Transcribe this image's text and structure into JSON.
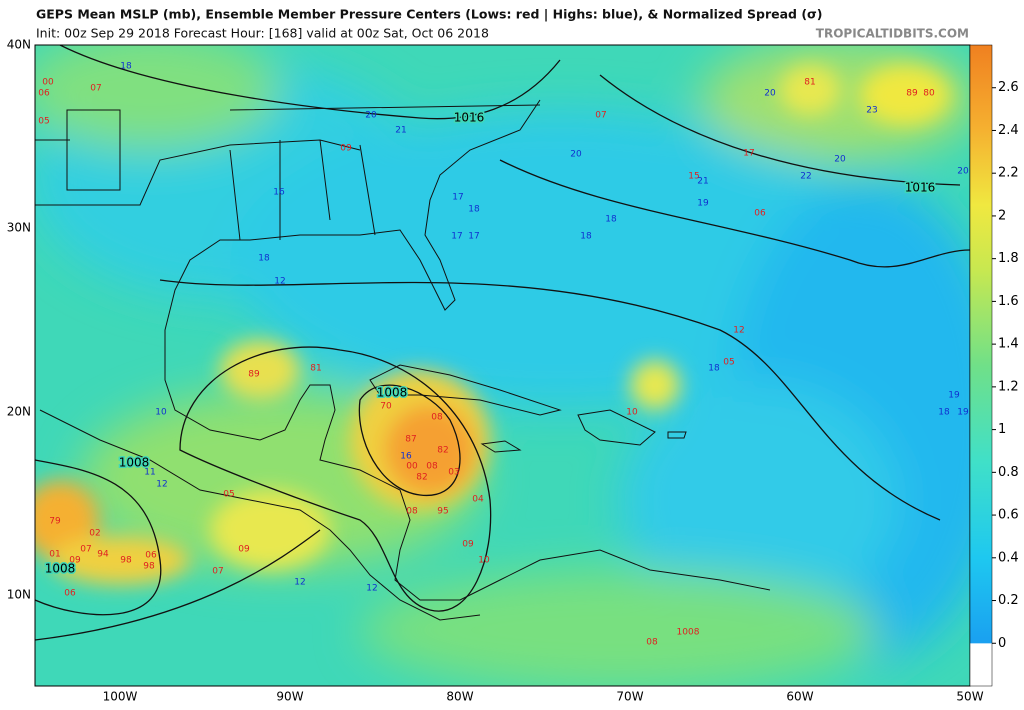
{
  "header": {
    "title": "GEPS Mean MSLP (mb), Ensemble Member Pressure Centers (Lows: red | Highs: blue), & Normalized Spread (σ)",
    "subtitle": "Init: 00z Sep 29 2018   Forecast Hour: [168]   valid at 00z Sat, Oct 06 2018",
    "credit": "TROPICALTIDBITS.COM"
  },
  "map": {
    "lat_labels": [
      "40N",
      "30N",
      "20N",
      "10N"
    ],
    "lon_labels": [
      "100W",
      "90W",
      "80W",
      "70W",
      "60W",
      "50W"
    ],
    "isobar_labels": [
      "1016",
      "1016",
      "1008",
      "1008",
      "1008"
    ],
    "lows": [
      "00",
      "07",
      "06",
      "05",
      "09",
      "07",
      "81",
      "89",
      "80",
      "17",
      "15",
      "06",
      "89",
      "81",
      "70",
      "08",
      "87",
      "82",
      "00",
      "08",
      "82",
      "03",
      "08",
      "95",
      "04",
      "09",
      "10",
      "79",
      "02",
      "01",
      "07",
      "09",
      "94",
      "98",
      "06",
      "98",
      "09",
      "07",
      "05",
      "08",
      "1008",
      "12",
      "05",
      "10",
      "06"
    ],
    "highs": [
      "18",
      "20",
      "21",
      "20",
      "16",
      "17",
      "18",
      "17",
      "17",
      "18",
      "18",
      "21",
      "19",
      "22",
      "20",
      "20",
      "23",
      "20",
      "18",
      "12",
      "10",
      "16",
      "11",
      "12",
      "12",
      "18",
      "19",
      "18",
      "19",
      "12"
    ]
  },
  "colorbar": {
    "lim": [
      -0.2,
      2.8
    ],
    "ticks": [
      0,
      0.2,
      0.4,
      0.6,
      0.8,
      1,
      1.2,
      1.4,
      1.6,
      1.8,
      2,
      2.2,
      2.4,
      2.6
    ]
  }
}
